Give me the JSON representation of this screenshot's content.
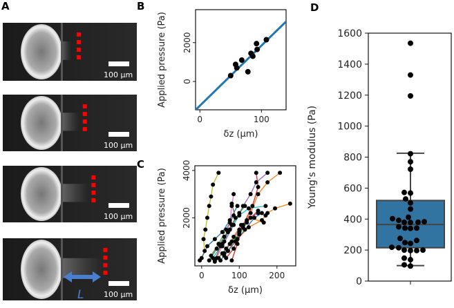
{
  "panel_labels": {
    "a": "A",
    "b": "B",
    "c": "C",
    "d": "D"
  },
  "panel_a": {
    "scale_bar_label": "100 µm",
    "length_label": "L",
    "images": 4,
    "marker_color": "#ff0000",
    "arrow_color": "#4a7fd0"
  },
  "chart_data": [
    {
      "id": "B",
      "type": "scatter",
      "title": "",
      "xlabel": "δz (µm)",
      "ylabel": "Applied pressure (Pa)",
      "xlim": [
        -7,
        140
      ],
      "ylim": [
        -1460,
        3700
      ],
      "xticks": [
        0,
        100
      ],
      "yticks": [
        0,
        2000
      ],
      "xtick_labels": [
        "0",
        "100"
      ],
      "ytick_labels": [
        "0",
        "2000"
      ],
      "points": [
        [
          50,
          300
        ],
        [
          58,
          880
        ],
        [
          60,
          700
        ],
        [
          68,
          1100
        ],
        [
          78,
          500
        ],
        [
          83,
          1450
        ],
        [
          86,
          1300
        ],
        [
          92,
          1950
        ],
        [
          93,
          1650
        ],
        [
          108,
          2150
        ]
      ],
      "fit_line": {
        "intercept": -1250,
        "slope": 31,
        "color": "#1f77b4"
      },
      "grid": false
    },
    {
      "id": "C",
      "type": "line",
      "xlabel": "δz (µm)",
      "ylabel": "Applied pressure (Pa)",
      "xlim": [
        -18,
        250
      ],
      "ylim": [
        -30,
        4200
      ],
      "xticks": [
        0,
        100,
        200
      ],
      "yticks": [
        2000,
        4000
      ],
      "xtick_labels": [
        "0",
        "100",
        "200"
      ],
      "ytick_labels": [
        "2000",
        "4000"
      ],
      "grid": false,
      "series": [
        {
          "color": "#bcbd22",
          "points": [
            [
              -5,
              200
            ],
            [
              8,
              600
            ],
            [
              5,
              1100
            ],
            [
              10,
              1500
            ],
            [
              15,
              2000
            ],
            [
              20,
              2500
            ],
            [
              25,
              2900
            ],
            [
              30,
              3400
            ],
            [
              45,
              3900
            ]
          ]
        },
        {
          "color": "#ff7f0e",
          "points": [
            [
              60,
              400
            ],
            [
              95,
              1100
            ],
            [
              125,
              1600
            ],
            [
              160,
              1900
            ],
            [
              175,
              2200
            ],
            [
              195,
              2400
            ],
            [
              235,
              2600
            ]
          ]
        },
        {
          "color": "#ff7f0e",
          "points": [
            [
              70,
              600
            ],
            [
              100,
              1400
            ],
            [
              130,
              2200
            ],
            [
              150,
              3000
            ],
            [
              175,
              3500
            ],
            [
              208,
              3900
            ]
          ]
        },
        {
          "color": "#9467bd",
          "points": [
            [
              55,
              800
            ],
            [
              85,
              1700
            ],
            [
              110,
              2500
            ],
            [
              130,
              3000
            ],
            [
              145,
              3500
            ],
            [
              175,
              3900
            ]
          ]
        },
        {
          "color": "#d62728",
          "points": [
            [
              80,
              200
            ],
            [
              95,
              900
            ],
            [
              110,
              1700
            ],
            [
              135,
              2500
            ],
            [
              150,
              3300
            ],
            [
              145,
              3900
            ]
          ]
        },
        {
          "color": "#e377c2",
          "points": [
            [
              40,
              300
            ],
            [
              60,
              1000
            ],
            [
              75,
              1800
            ],
            [
              80,
              2500
            ],
            [
              85,
              3000
            ]
          ]
        },
        {
          "color": "#1f77b4",
          "points": [
            [
              0,
              300
            ],
            [
              15,
              800
            ],
            [
              35,
              1100
            ],
            [
              55,
              1400
            ],
            [
              75,
              1900
            ],
            [
              95,
              2500
            ]
          ]
        },
        {
          "color": "#2ca02c",
          "points": [
            [
              20,
              200
            ],
            [
              40,
              700
            ],
            [
              60,
              1200
            ],
            [
              80,
              1700
            ],
            [
              100,
              2200
            ],
            [
              115,
              2500
            ]
          ]
        },
        {
          "color": "#17becf",
          "points": [
            [
              30,
              300
            ],
            [
              55,
              900
            ],
            [
              75,
              1500
            ],
            [
              100,
              2100
            ],
            [
              125,
              2400
            ],
            [
              170,
              2500
            ]
          ]
        },
        {
          "color": "#8c564b",
          "points": [
            [
              35,
              200
            ],
            [
              50,
              800
            ],
            [
              70,
              1400
            ],
            [
              90,
              2000
            ],
            [
              80,
              2600
            ]
          ]
        },
        {
          "color": "#7f7f7f",
          "points": [
            [
              25,
              400
            ],
            [
              45,
              900
            ],
            [
              65,
              1500
            ],
            [
              85,
              2100
            ]
          ]
        },
        {
          "color": "#d62728",
          "points": [
            [
              65,
              300
            ],
            [
              85,
              700
            ],
            [
              95,
              1100
            ],
            [
              110,
              1600
            ],
            [
              130,
              2000
            ],
            [
              150,
              2300
            ]
          ]
        },
        {
          "color": "#ff7f0e",
          "points": [
            [
              45,
              300
            ],
            [
              65,
              700
            ],
            [
              85,
              1200
            ],
            [
              105,
              1700
            ],
            [
              130,
              2000
            ],
            [
              165,
              1800
            ]
          ]
        },
        {
          "color": "#1f77b4",
          "points": [
            [
              50,
              200
            ],
            [
              70,
              600
            ],
            [
              90,
              1000
            ],
            [
              115,
              1500
            ],
            [
              140,
              2000
            ],
            [
              160,
              2200
            ]
          ]
        },
        {
          "color": "#2ca02c",
          "points": [
            [
              35,
              150
            ],
            [
              55,
              500
            ],
            [
              75,
              900
            ],
            [
              100,
              1300
            ],
            [
              120,
              1800
            ]
          ]
        },
        {
          "color": "#9467bd",
          "points": [
            [
              60,
              500
            ],
            [
              80,
              1000
            ],
            [
              100,
              1500
            ],
            [
              120,
              1900
            ],
            [
              150,
              2200
            ],
            [
              170,
              2100
            ]
          ]
        }
      ]
    },
    {
      "id": "D",
      "type": "box",
      "xlabel": "",
      "ylabel": "Young's modulus (Pa)",
      "ylim": [
        0,
        1600
      ],
      "yticks": [
        0,
        200,
        400,
        600,
        800,
        1000,
        1200,
        1400,
        1600
      ],
      "ytick_labels": [
        "0",
        "200",
        "400",
        "600",
        "800",
        "1000",
        "1200",
        "1400",
        "1600"
      ],
      "box": {
        "whisker_low": 100,
        "q1": 215,
        "median": 365,
        "q3": 520,
        "whisker_high": 825,
        "color": "#3274a1"
      },
      "points": [
        1535,
        1330,
        1195,
        822,
        770,
        722,
        572,
        568,
        530,
        505,
        465,
        412,
        403,
        392,
        380,
        378,
        380,
        383,
        350,
        342,
        340,
        342,
        275,
        262,
        248,
        243,
        218,
        215,
        200,
        197,
        197,
        200,
        148,
        138,
        105,
        97
      ],
      "grid": false
    }
  ]
}
